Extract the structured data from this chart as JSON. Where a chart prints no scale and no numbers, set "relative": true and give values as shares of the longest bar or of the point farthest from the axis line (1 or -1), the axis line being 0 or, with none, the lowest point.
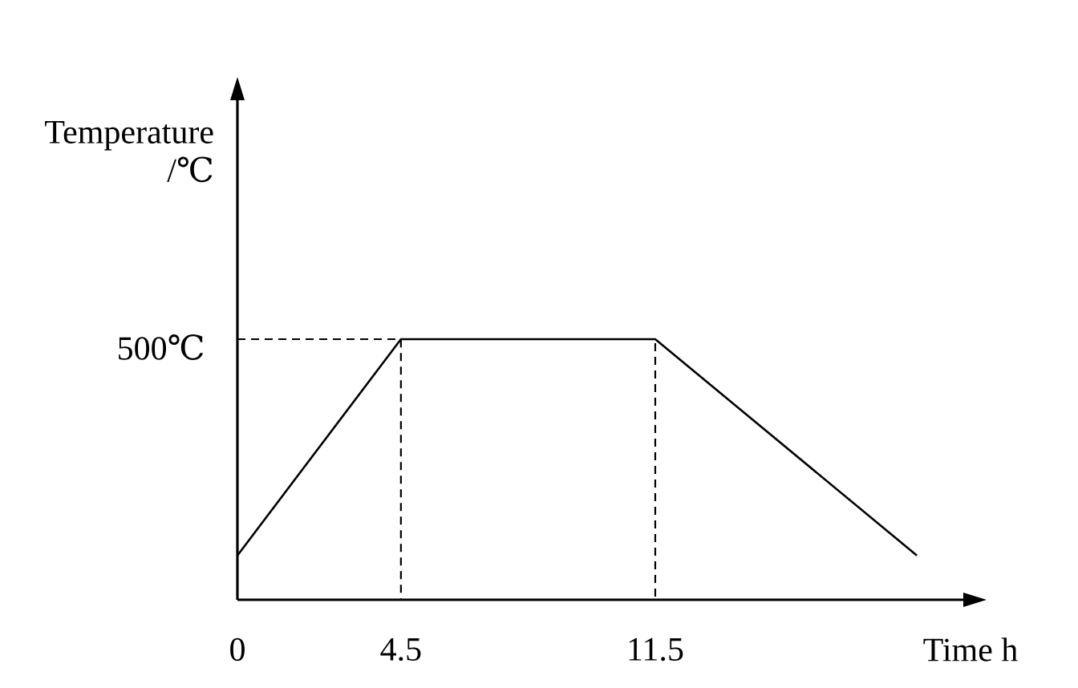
{
  "chart_data": {
    "type": "line",
    "xlabel": "Time h",
    "ylabel": "Temperature /℃",
    "relative": true,
    "tick_labels": "x",
    "x": [
      0,
      4.5,
      11.5,
      18.7
    ],
    "xlim": [
      0,
      20
    ],
    "xticks": [
      0,
      4.5,
      11.5
    ],
    "series": [
      {
        "color": "#000000",
        "line_style": "solid",
        "values": [
          0.17,
          1,
          1,
          0.17
        ]
      },
      {
        "color": "#000000",
        "line_style": "dashed",
        "x": [
          0,
          4.5,
          4.5,
          11.5,
          11.5
        ],
        "values": [
          1,
          1,
          0,
          0,
          1
        ]
      }
    ],
    "annotations": [
      {
        "text": "500℃",
        "x": 0,
        "y": 1
      }
    ]
  }
}
